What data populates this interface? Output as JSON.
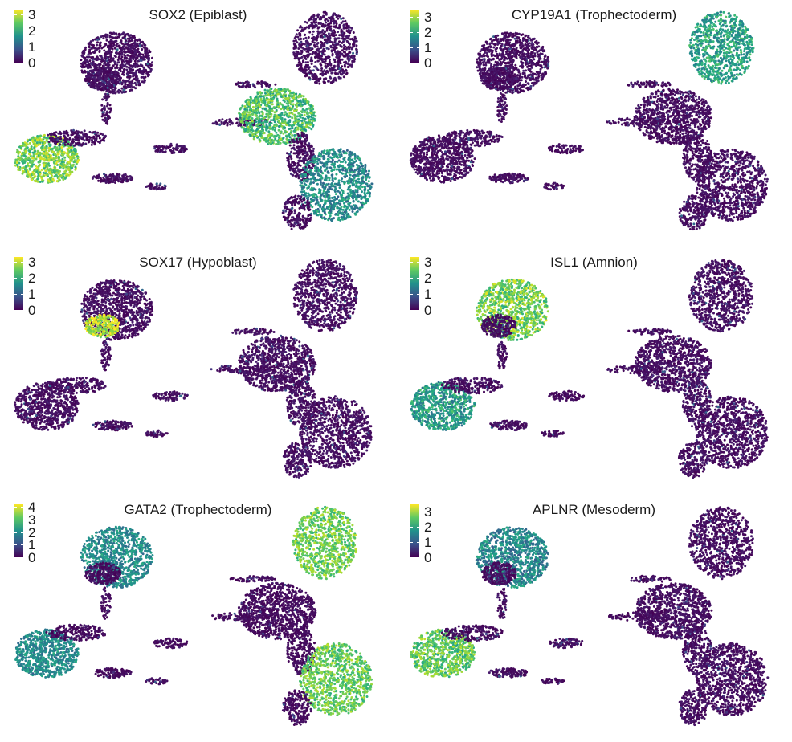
{
  "chart_data": [
    {
      "type": "scatter",
      "title": "SOX2 (Epiblast)",
      "colorbar": {
        "ticks": [
          "0",
          "1",
          "2",
          "3"
        ],
        "max": 3.3
      },
      "hotspots": [
        {
          "region": "right-middle",
          "level": 2.3
        },
        {
          "region": "left-lower",
          "level": 2.6
        },
        {
          "region": "right-lower",
          "level": 1.6
        }
      ]
    },
    {
      "type": "scatter",
      "title": "CYP19A1 (Trophectoderm)",
      "colorbar": {
        "ticks": [
          "0",
          "1",
          "2",
          "3"
        ],
        "max": 3.5
      },
      "hotspots": [
        {
          "region": "right-upper",
          "level": 2.0
        }
      ]
    },
    {
      "type": "scatter",
      "title": "SOX17 (Hypoblast)",
      "colorbar": {
        "ticks": [
          "0",
          "1",
          "2",
          "3"
        ],
        "max": 3.3
      },
      "hotspots": [
        {
          "region": "top-left-cluster-lower",
          "level": 3.0
        }
      ]
    },
    {
      "type": "scatter",
      "title": "ISL1 (Amnion)",
      "colorbar": {
        "ticks": [
          "0",
          "1",
          "2",
          "3"
        ],
        "max": 3.3
      },
      "hotspots": [
        {
          "region": "top-left-cluster",
          "level": 2.6
        },
        {
          "region": "left-lower",
          "level": 1.8
        }
      ]
    },
    {
      "type": "scatter",
      "title": "GATA2 (Trophectoderm)",
      "colorbar": {
        "ticks": [
          "0",
          "1",
          "2",
          "3",
          "4"
        ],
        "max": 4.2
      },
      "hotspots": [
        {
          "region": "top-left-cluster",
          "level": 2.0
        },
        {
          "region": "left-lower",
          "level": 2.0
        },
        {
          "region": "right-upper",
          "level": 3.3
        },
        {
          "region": "right-lower",
          "level": 3.2
        }
      ]
    },
    {
      "type": "scatter",
      "title": "APLNR (Mesoderm)",
      "colorbar": {
        "ticks": [
          "0",
          "1",
          "2",
          "3"
        ],
        "max": 3.5
      },
      "hotspots": [
        {
          "region": "left-lower",
          "level": 2.6
        },
        {
          "region": "top-left-cluster",
          "level": 1.6
        }
      ]
    }
  ],
  "colors": {
    "low": "#440154",
    "mid": "#21918c",
    "high": "#fde725"
  }
}
